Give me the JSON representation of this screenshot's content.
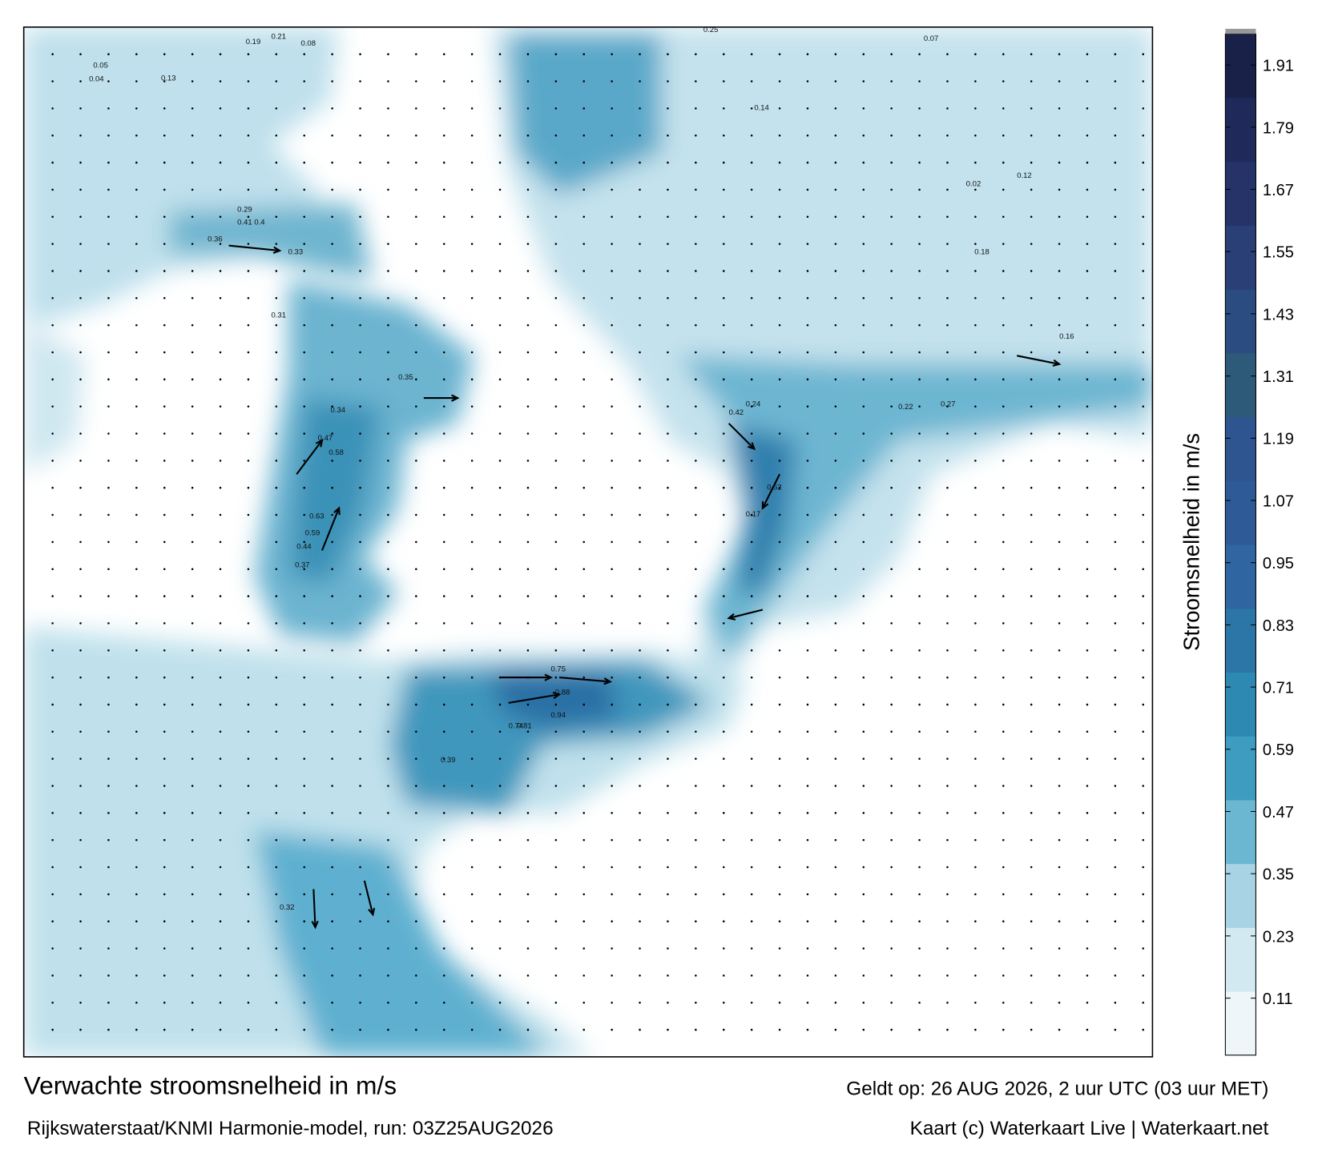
{
  "title": "Verwachte stroomsnelheid in m/s",
  "subtitle": "Rijkswaterstaat/KNMI Harmonie-model, run: 03Z25AUG2026",
  "valid_time": "Geldt op: 26 AUG 2026, 2 uur UTC (03 uur MET)",
  "credit": "Kaart (c) Waterkaart Live | Waterkaart.net",
  "colorbar": {
    "label": "Stroomsnelheid in m/s",
    "lim": [
      0,
      1.97
    ],
    "ticks": [
      0.11,
      0.23,
      0.35,
      0.47,
      0.59,
      0.71,
      0.83,
      0.95,
      1.07,
      1.19,
      1.31,
      1.43,
      1.55,
      1.67,
      1.79,
      1.91
    ],
    "colors": [
      "#eef6f9",
      "#d3e9f1",
      "#a8d3e4",
      "#6bb7d2",
      "#3d9cc0",
      "#2d88b2",
      "#2b76a6",
      "#2f65a0",
      "#2f5a98",
      "#2f5590",
      "#2e5a7a",
      "#2b4c80",
      "#2a3f76",
      "#253368",
      "#1f2a5a",
      "#1a2148"
    ]
  },
  "map_labels": [
    0.19,
    0.21,
    0.08,
    0.05,
    0.04,
    0.13,
    0.29,
    0.31,
    0.25,
    0.14,
    0.07,
    0.02,
    0.41,
    0.36,
    0.4,
    0.33,
    0.47,
    0.58,
    0.63,
    0.59,
    0.44,
    0.37,
    0.75,
    0.88,
    0.94,
    0.74,
    0.81,
    0.52,
    0.39,
    0.34,
    0.35,
    0.42,
    0.17,
    0.22,
    0.27,
    0.12,
    0.16,
    0.18,
    0.24,
    0.32
  ]
}
